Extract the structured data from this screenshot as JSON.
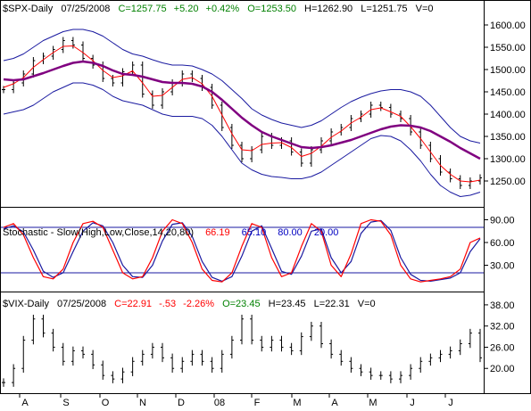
{
  "colors": {
    "price": "#000000",
    "ma_fast": "#ff0000",
    "ma_slow": "#800080",
    "band": "#1a1aa0",
    "stoch_k": "#ff0000",
    "stoch_d": "#1a1aa0",
    "stoch_levels": "#1a1aa0",
    "header_green": "#008000",
    "header_red": "#ff0000",
    "header_blue": "#0000c0"
  },
  "x_axis": {
    "labels": [
      "A",
      "S",
      "O",
      "N",
      "D",
      "08",
      "F",
      "M",
      "A",
      "M",
      "J",
      "J"
    ]
  },
  "chart_data": [
    {
      "type": "line",
      "panel": "price",
      "header": {
        "symbol": "$SPX-Daily",
        "date": "07/25/2008",
        "close": "C=1257.75",
        "change": "+5.20",
        "change_pct": "+0.42%",
        "open": "O=1253.50",
        "high": "H=1262.90",
        "low": "L=1251.75",
        "volume": "V=0"
      },
      "yticks": [
        "1600.00",
        "1550.00",
        "1500.00",
        "1450.00",
        "1400.00",
        "1350.00",
        "1300.00",
        "1250.00"
      ],
      "ylim": [
        1200,
        1620
      ],
      "close": [
        1455,
        1470,
        1490,
        1520,
        1530,
        1545,
        1565,
        1555,
        1525,
        1510,
        1480,
        1470,
        1495,
        1510,
        1445,
        1420,
        1450,
        1470,
        1490,
        1480,
        1460,
        1420,
        1370,
        1330,
        1300,
        1320,
        1350,
        1330,
        1340,
        1315,
        1290,
        1320,
        1340,
        1360,
        1370,
        1390,
        1400,
        1420,
        1415,
        1400,
        1390,
        1360,
        1330,
        1300,
        1270,
        1255,
        1240,
        1250,
        1257
      ],
      "ma_fast": [
        1460,
        1468,
        1482,
        1505,
        1522,
        1538,
        1552,
        1553,
        1538,
        1520,
        1498,
        1482,
        1486,
        1497,
        1470,
        1440,
        1442,
        1460,
        1478,
        1482,
        1468,
        1440,
        1398,
        1356,
        1320,
        1318,
        1332,
        1335,
        1336,
        1325,
        1305,
        1312,
        1328,
        1348,
        1362,
        1380,
        1393,
        1410,
        1414,
        1405,
        1395,
        1372,
        1345,
        1315,
        1285,
        1265,
        1250,
        1248,
        1252
      ],
      "ma_slow": [
        1478,
        1476,
        1478,
        1485,
        1492,
        1500,
        1508,
        1515,
        1518,
        1515,
        1508,
        1498,
        1490,
        1488,
        1484,
        1478,
        1472,
        1470,
        1470,
        1468,
        1462,
        1450,
        1432,
        1412,
        1392,
        1375,
        1360,
        1350,
        1342,
        1334,
        1326,
        1324,
        1326,
        1330,
        1336,
        1342,
        1350,
        1358,
        1366,
        1372,
        1375,
        1374,
        1370,
        1362,
        1350,
        1338,
        1324,
        1312,
        1300
      ],
      "band_upper": [
        1520,
        1525,
        1535,
        1550,
        1565,
        1575,
        1585,
        1590,
        1590,
        1585,
        1575,
        1560,
        1545,
        1535,
        1530,
        1522,
        1515,
        1510,
        1510,
        1508,
        1500,
        1490,
        1475,
        1455,
        1435,
        1412,
        1398,
        1388,
        1380,
        1375,
        1370,
        1375,
        1385,
        1400,
        1415,
        1428,
        1438,
        1446,
        1452,
        1455,
        1455,
        1450,
        1440,
        1420,
        1395,
        1370,
        1350,
        1340,
        1335
      ],
      "band_lower": [
        1400,
        1405,
        1410,
        1420,
        1435,
        1450,
        1460,
        1470,
        1470,
        1465,
        1455,
        1440,
        1430,
        1425,
        1420,
        1410,
        1400,
        1395,
        1395,
        1395,
        1390,
        1375,
        1350,
        1320,
        1290,
        1275,
        1265,
        1260,
        1258,
        1255,
        1255,
        1260,
        1270,
        1285,
        1300,
        1315,
        1330,
        1345,
        1352,
        1350,
        1340,
        1320,
        1295,
        1265,
        1240,
        1225,
        1215,
        1218,
        1225
      ]
    },
    {
      "type": "line",
      "panel": "stochastic",
      "header": {
        "title": "Stochastic - Slow(High,Low,Close,14,20,80)",
        "k_value": "66.19",
        "d_value": "65.10",
        "upper_level": "80.00",
        "lower_level": "20.00"
      },
      "yticks": [
        "90.00",
        "60.00",
        "30.00"
      ],
      "ylim": [
        0,
        100
      ],
      "levels": [
        80,
        20
      ],
      "k": [
        80,
        85,
        70,
        40,
        15,
        12,
        25,
        60,
        85,
        88,
        80,
        50,
        20,
        12,
        15,
        40,
        75,
        90,
        85,
        60,
        25,
        10,
        8,
        20,
        55,
        85,
        80,
        40,
        15,
        20,
        55,
        85,
        75,
        30,
        15,
        45,
        85,
        90,
        88,
        70,
        30,
        12,
        8,
        10,
        12,
        15,
        25,
        60,
        66
      ],
      "d": [
        78,
        82,
        74,
        50,
        22,
        14,
        20,
        48,
        75,
        86,
        82,
        60,
        30,
        15,
        14,
        30,
        62,
        84,
        86,
        68,
        35,
        14,
        9,
        15,
        42,
        75,
        82,
        52,
        22,
        18,
        42,
        75,
        78,
        40,
        20,
        35,
        72,
        87,
        89,
        76,
        40,
        18,
        10,
        9,
        11,
        13,
        20,
        48,
        65
      ]
    },
    {
      "type": "line",
      "panel": "vix",
      "header": {
        "symbol": "$VIX-Daily",
        "date": "07/25/2008",
        "close": "C=22.91",
        "change": "-.53",
        "change_pct": "-2.26%",
        "open": "O=23.45",
        "high": "H=23.45",
        "low": "L=22.31",
        "volume": "V=0"
      },
      "yticks": [
        "38.00",
        "32.00",
        "26.00",
        "20.00"
      ],
      "ylim": [
        14,
        40
      ],
      "close": [
        16,
        20,
        28,
        34,
        30,
        26,
        22,
        25,
        24,
        21,
        18,
        17,
        19,
        22,
        24,
        26,
        23,
        20,
        22,
        24,
        22,
        20,
        24,
        28,
        34,
        28,
        26,
        28,
        26,
        25,
        29,
        32,
        27,
        24,
        22,
        20,
        19,
        18,
        18,
        17,
        18,
        20,
        22,
        23,
        24,
        25,
        27,
        30,
        23
      ]
    }
  ]
}
